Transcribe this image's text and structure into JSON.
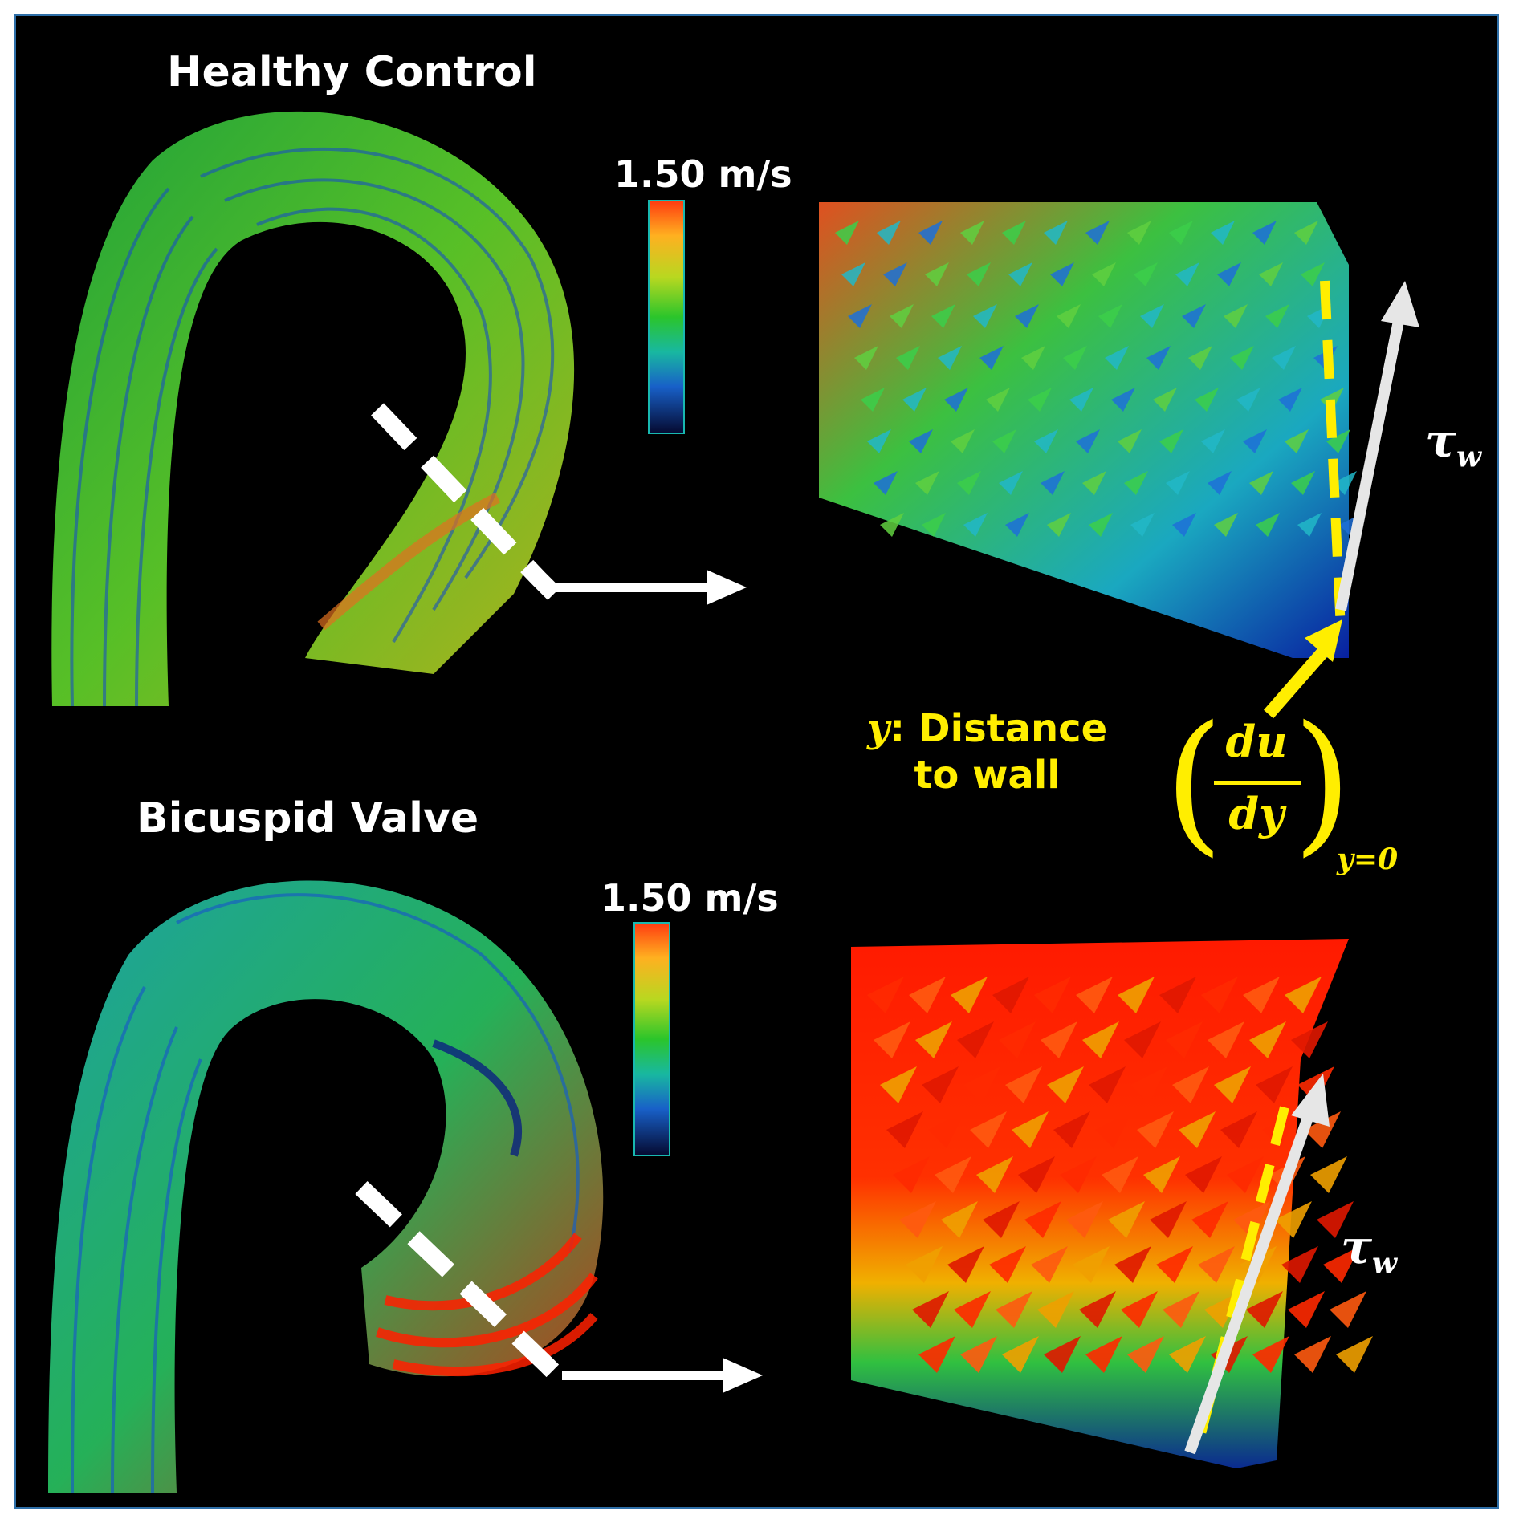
{
  "panels": [
    {
      "title": "Healthy Control",
      "scale_label": "1.50 m/s"
    },
    {
      "title": "Bicuspid Valve",
      "scale_label": "1.50 m/s"
    }
  ],
  "annotation": {
    "wall_shear_symbol": "τ",
    "wall_shear_subscript": "w",
    "distance_var": "y",
    "distance_text_line1": ": Distance",
    "distance_text_line2": "to wall",
    "gradient_numerator": "du",
    "gradient_denominator": "dy",
    "gradient_evaluated_at": "y=0"
  },
  "colors": {
    "background": "#000000",
    "frame_border": "#2e6fa8",
    "label_text": "#ffffff",
    "annotation_yellow": "#ffee00",
    "arrow_grey": "#e6e6e6",
    "colormap": [
      "#ff3b10",
      "#ffb020",
      "#b8d820",
      "#2bc52b",
      "#18b8a0",
      "#1860c8",
      "#0a1a78",
      "#050a30"
    ]
  },
  "icons": [
    "dashed-cut-line",
    "right-arrow",
    "wall-shear-arrow",
    "yellow-pointer-arrow"
  ]
}
